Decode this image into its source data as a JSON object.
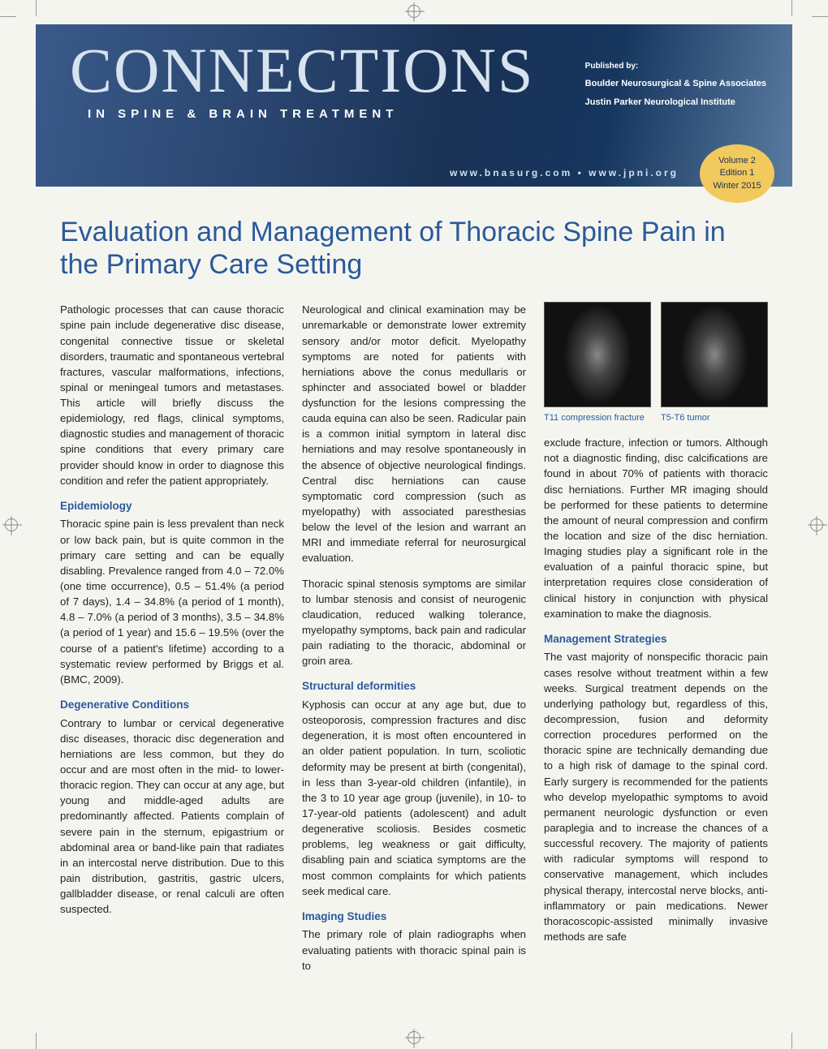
{
  "banner": {
    "title": "CONNECTIONS",
    "subtitle": "IN SPINE & BRAIN TREATMENT",
    "published_label": "Published by:",
    "publisher_line1": "Boulder Neurosurgical & Spine Associates",
    "publisher_line2": "Justin Parker Neurological Institute",
    "urls": "www.bnasurg.com   •   www.jpni.org",
    "issue": {
      "volume": "Volume 2",
      "edition": "Edition 1",
      "season": "Winter 2015"
    },
    "colors": {
      "bg_grad_start": "#3a5a8a",
      "bg_grad_end": "#5b7ca1",
      "title_color": "#d7e3ef",
      "badge_bg": "#f2c95c",
      "badge_text": "#1a3256"
    }
  },
  "article": {
    "title": "Evaluation and Management of Thoracic Spine Pain in the Primary Care Setting",
    "title_color": "#2a5a9a",
    "heading_color": "#2a5a9a",
    "col1": {
      "intro": "Pathologic processes that can cause thoracic spine pain include degenerative disc disease, congenital connective tissue or skeletal disorders, traumatic and spontaneous vertebral fractures, vascular malformations, infections, spinal or meningeal tumors and metastases. This article will briefly discuss the epidemiology, red flags, clinical symptoms, diagnostic studies and management of thoracic spine conditions that every primary care provider should know in order to diagnose this condition and refer the patient appropriately.",
      "h_epi": "Epidemiology",
      "p_epi": "Thoracic spine pain is less prevalent than neck or low back pain, but is quite common in the primary care setting and can be equally disabling. Prevalence ranged from 4.0 – 72.0% (one time occurrence), 0.5 – 51.4% (a period of 7 days), 1.4 – 34.8% (a period of 1 month), 4.8 – 7.0% (a period of 3 months), 3.5 – 34.8% (a period of 1 year) and 15.6 – 19.5% (over the course of a patient's lifetime) according to a systematic review performed by Briggs et al. (BMC, 2009).",
      "h_degen": "Degenerative Conditions",
      "p_degen": "Contrary to lumbar or cervical degenerative disc diseases, thoracic disc degeneration and herniations are less common, but they do occur and are most often in the mid- to lower- thoracic region. They can occur at any age, but young and middle-aged adults are predominantly affected. Patients complain of severe pain in the sternum, epigastrium or abdominal area or band-like pain that radiates in an intercostal nerve distribution. Due to this pain distribution, gastritis, gastric ulcers, gallbladder disease, or renal calculi are often suspected."
    },
    "col2": {
      "p_neuro": "Neurological and clinical examination may be unremarkable or demonstrate lower extremity sensory and/or motor deficit. Myelopathy symptoms are noted for patients with herniations above the conus medullaris or sphincter and associated bowel or bladder dysfunction for the lesions compressing the cauda equina can also be seen. Radicular pain is a common initial symptom in lateral disc herniations and may resolve spontaneously in the absence of objective neurological findings. Central disc herniations can cause symptomatic cord compression (such as myelopathy) with associated paresthesias below the level of the lesion and warrant an MRI and immediate referral for neurosurgical evaluation.",
      "p_stenosis": "Thoracic spinal stenosis symptoms are similar to lumbar stenosis and consist of neurogenic claudication, reduced walking tolerance, myelopathy symptoms, back pain and radicular pain radiating to the thoracic, abdominal or groin area.",
      "h_struct": "Structural deformities",
      "p_struct": "Kyphosis can occur at any age but, due to osteoporosis, compression fractures and disc degeneration, it is most often encountered in an older patient population. In turn, scoliotic deformity may be present at birth (congenital), in less than 3-year-old children (infantile), in the 3 to 10 year age group (juvenile), in 10- to 17-year-old patients (adolescent) and adult degenerative scoliosis. Besides cosmetic problems, leg weakness or gait difficulty, disabling pain and sciatica symptoms are the most common complaints for which patients seek medical care.",
      "h_imaging": "Imaging Studies",
      "p_imaging": "The primary role of plain radiographs when evaluating patients with thoracic spinal pain is to"
    },
    "col3": {
      "fig1_caption": "T11 compression fracture",
      "fig2_caption": "T5-T6 tumor",
      "p_imaging_cont": "exclude fracture, infection or tumors. Although not a diagnostic finding, disc calcifications are found in about 70% of patients with thoracic disc herniations. Further MR imaging should be performed for these patients to determine the amount of neural compression and confirm the location and size of the disc herniation. Imaging studies play a significant role in the evaluation of a painful thoracic spine, but interpretation requires close consideration of clinical history in conjunction with physical examination to make the diagnosis.",
      "h_mgmt": "Management Strategies",
      "p_mgmt": "The vast majority of nonspecific thoracic pain cases resolve without treatment within a few weeks. Surgical treatment depends on the underlying pathology but, regardless of this, decompression, fusion and deformity correction procedures performed on the thoracic spine are technically demanding due to a high risk of damage to the spinal cord. Early surgery is recommended for the patients who develop myelopathic symptoms to avoid permanent neurologic dysfunction or even paraplegia and to increase the chances of a successful recovery. The majority of patients with radicular symptoms will respond to conservative management, which includes physical therapy, intercostal nerve blocks, anti-inflammatory or pain medications. Newer thoracoscopic-assisted minimally invasive methods are safe"
    }
  }
}
